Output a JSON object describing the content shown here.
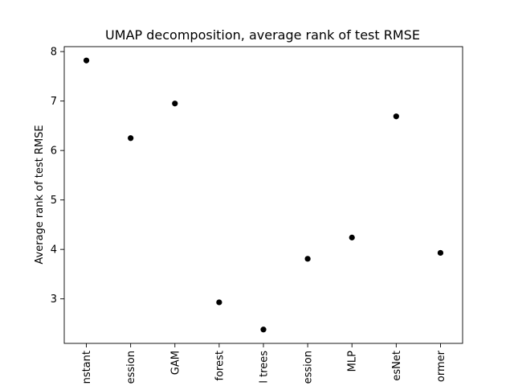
{
  "chart_data": {
    "type": "scatter",
    "title": "UMAP decomposition, average rank of test RMSE",
    "xlabel": "",
    "ylabel": "Average rank of test RMSE",
    "categories": [
      "nstant",
      "ession",
      "GAM",
      "forest",
      "l trees",
      "ession",
      "MLP",
      "esNet",
      "ormer"
    ],
    "values": [
      7.82,
      6.25,
      6.95,
      2.93,
      2.38,
      3.81,
      4.24,
      6.69,
      3.93
    ],
    "ylim": [
      2.1,
      8.1
    ],
    "yticks": [
      3,
      4,
      5,
      6,
      7,
      8
    ],
    "grid": false,
    "marker_color": "#000000"
  }
}
